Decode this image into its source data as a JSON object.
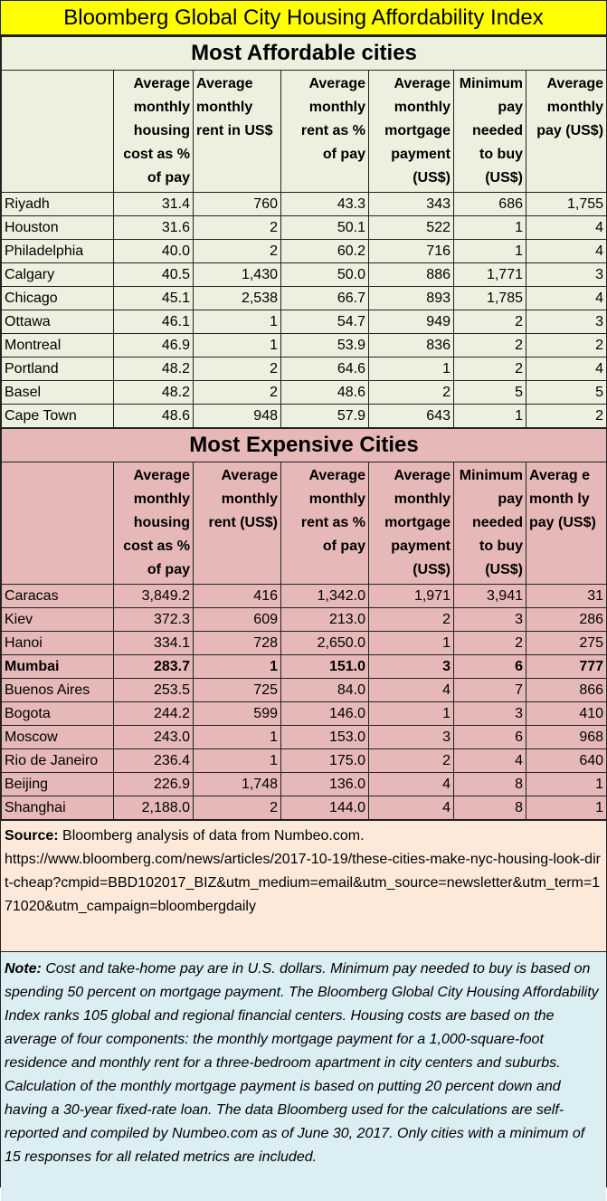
{
  "title": "Bloomberg Global City Housing Affordability Index",
  "affordable": {
    "section_title": "Most Affordable cities",
    "headers": [
      "Average monthly housing cost as % of pay",
      "Average monthly rent in US$",
      "Average monthly rent as % of pay",
      "Average monthly mortgage payment (US$)",
      "Minimum pay needed to buy (US$)",
      "Average monthly pay (US$)"
    ],
    "rows": [
      {
        "city": "Riyadh",
        "v": [
          "31.4",
          "760",
          "43.3",
          "343",
          "686",
          "1,755"
        ]
      },
      {
        "city": "Houston",
        "v": [
          "31.6",
          "2",
          "50.1",
          "522",
          "1",
          "4"
        ]
      },
      {
        "city": "Philadelphia",
        "v": [
          "40.0",
          "2",
          "60.2",
          "716",
          "1",
          "4"
        ]
      },
      {
        "city": "Calgary",
        "v": [
          "40.5",
          "1,430",
          "50.0",
          "886",
          "1,771",
          "3"
        ]
      },
      {
        "city": "Chicago",
        "v": [
          "45.1",
          "2,538",
          "66.7",
          "893",
          "1,785",
          "4"
        ]
      },
      {
        "city": "Ottawa",
        "v": [
          "46.1",
          "1",
          "54.7",
          "949",
          "2",
          "3"
        ]
      },
      {
        "city": "Montreal",
        "v": [
          "46.9",
          "1",
          "53.9",
          "836",
          "2",
          "2"
        ]
      },
      {
        "city": "Portland",
        "v": [
          "48.2",
          "2",
          "64.6",
          "1",
          "2",
          "4"
        ]
      },
      {
        "city": "Basel",
        "v": [
          "48.2",
          "2",
          "48.6",
          "2",
          "5",
          "5"
        ]
      },
      {
        "city": "Cape Town",
        "v": [
          "48.6",
          "948",
          "57.9",
          "643",
          "1",
          "2"
        ]
      }
    ]
  },
  "expensive": {
    "section_title": "Most Expensive Cities",
    "headers": [
      "Average monthly housing cost as % of pay",
      "Average monthly rent (US$)",
      "Average monthly rent as % of pay",
      "Average monthly mortgage payment (US$)",
      "Minimum pay needed to buy (US$)",
      "Averag e month ly pay (US$)"
    ],
    "rows": [
      {
        "city": "Caracas",
        "v": [
          "3,849.2",
          "416",
          "1,342.0",
          "1,971",
          "3,941",
          "31"
        ]
      },
      {
        "city": "Kiev",
        "v": [
          "372.3",
          "609",
          "213.0",
          "2",
          "3",
          "286"
        ]
      },
      {
        "city": "Hanoi",
        "v": [
          "334.1",
          "728",
          "2,650.0",
          "1",
          "2",
          "275"
        ]
      },
      {
        "city": "Mumbai",
        "v": [
          "283.7",
          "1",
          "151.0",
          "3",
          "6",
          "777"
        ],
        "bold": true
      },
      {
        "city": "Buenos Aires",
        "v": [
          "253.5",
          "725",
          "84.0",
          "4",
          "7",
          "866"
        ]
      },
      {
        "city": "Bogota",
        "v": [
          "244.2",
          "599",
          "146.0",
          "1",
          "3",
          "410"
        ]
      },
      {
        "city": "Moscow",
        "v": [
          "243.0",
          "1",
          "153.0",
          "3",
          "6",
          "968"
        ]
      },
      {
        "city": "Rio de Janeiro",
        "v": [
          "236.4",
          "1",
          "175.0",
          "2",
          "4",
          "640"
        ]
      },
      {
        "city": "Beijing",
        "v": [
          "226.9",
          "1,748",
          "136.0",
          "4",
          "8",
          "1"
        ]
      },
      {
        "city": "Shanghai",
        "v": [
          "2,188.0",
          "2",
          "144.0",
          "4",
          "8",
          "1"
        ]
      }
    ]
  },
  "source": {
    "label": "Source:",
    "text": " Bloomberg analysis of data from Numbeo.com.",
    "url": "https://www.bloomberg.com/news/articles/2017-10-19/these-cities-make-nyc-housing-look-dirt-cheap?cmpid=BBD102017_BIZ&utm_medium=email&utm_source=newsletter&utm_term=171020&utm_campaign=bloombergdaily"
  },
  "note": {
    "label": "Note:",
    "text": "  Cost and take-home pay are in U.S. dollars. Minimum pay needed to buy is based on spending 50 percent on mortgage payment.  The Bloomberg Global City Housing Affordability Index ranks 105 global and regional financial centers. Housing costs are based on the average of four components: the monthly mortgage payment for a 1,000-square-foot residence and monthly rent for a three-bedroom apartment in city centers and suburbs. Calculation of the monthly mortgage payment is based on putting 20 percent down and having a 30-year fixed-rate loan. The data Bloomberg used for the calculations are self-reported and compiled by Numbeo.com as of June 30, 2017. Only cities with a minimum of 15 responses for all related metrics are included."
  },
  "colors": {
    "banner": "#ffff00",
    "affordable_bg": "#ebf1de",
    "expensive_bg": "#e6b8b7",
    "source_bg": "#fde9d9",
    "note_bg": "#dbeef3"
  }
}
